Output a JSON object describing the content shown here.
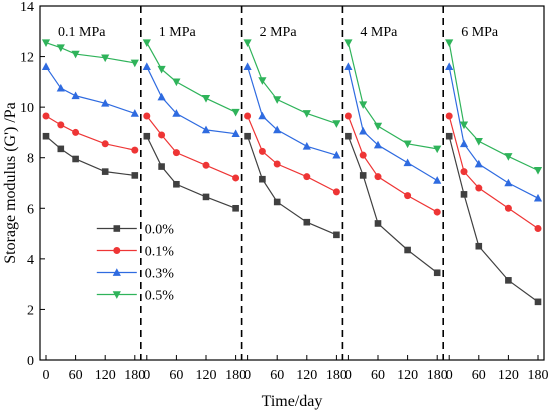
{
  "chart_data": {
    "type": "line",
    "ylabel": "Storage modulus (G') /Pa",
    "xlabel": "Time/day",
    "ylim": [
      0,
      14
    ],
    "yticks": [
      0,
      2,
      4,
      6,
      8,
      10,
      12,
      14
    ],
    "xlim": [
      0,
      180
    ],
    "xticks": [
      0,
      60,
      120,
      180
    ],
    "grid": false,
    "legend_position": "lower-left",
    "legend_panel": 1,
    "legend": [
      {
        "name": "0.0%",
        "color": "#404040",
        "marker": "square"
      },
      {
        "name": "0.1%",
        "color": "#ee3535",
        "marker": "circle"
      },
      {
        "name": "0.3%",
        "color": "#2f6be0",
        "marker": "triangle-up"
      },
      {
        "name": "0.5%",
        "color": "#2fb35a",
        "marker": "triangle-down"
      }
    ],
    "x": [
      0,
      30,
      60,
      120,
      180
    ],
    "panels": [
      {
        "label": "0.1 MPa",
        "series": [
          {
            "name": "0.0%",
            "values": [
              8.85,
              8.35,
              7.95,
              7.45,
              7.3
            ]
          },
          {
            "name": "0.1%",
            "values": [
              9.65,
              9.3,
              9.0,
              8.55,
              8.3
            ]
          },
          {
            "name": "0.3%",
            "values": [
              11.6,
              10.75,
              10.45,
              10.15,
              9.75
            ]
          },
          {
            "name": "0.5%",
            "values": [
              12.55,
              12.35,
              12.1,
              11.95,
              11.75
            ]
          }
        ]
      },
      {
        "label": "1 MPa",
        "series": [
          {
            "name": "0.0%",
            "values": [
              8.85,
              7.65,
              6.95,
              6.45,
              6.0
            ]
          },
          {
            "name": "0.1%",
            "values": [
              9.65,
              8.9,
              8.2,
              7.7,
              7.2
            ]
          },
          {
            "name": "0.3%",
            "values": [
              11.6,
              10.4,
              9.75,
              9.1,
              8.95
            ]
          },
          {
            "name": "0.5%",
            "values": [
              12.55,
              11.5,
              11.0,
              10.35,
              9.8
            ]
          }
        ]
      },
      {
        "label": "2 MPa",
        "series": [
          {
            "name": "0.0%",
            "values": [
              8.85,
              7.15,
              6.25,
              5.45,
              4.95
            ]
          },
          {
            "name": "0.1%",
            "values": [
              9.65,
              8.25,
              7.75,
              7.25,
              6.65
            ]
          },
          {
            "name": "0.3%",
            "values": [
              11.6,
              9.65,
              9.1,
              8.45,
              8.1
            ]
          },
          {
            "name": "0.5%",
            "values": [
              12.55,
              11.05,
              10.3,
              9.75,
              9.35
            ]
          }
        ]
      },
      {
        "label": "4 MPa",
        "series": [
          {
            "name": "0.0%",
            "values": [
              8.85,
              7.3,
              5.4,
              4.35,
              3.45
            ]
          },
          {
            "name": "0.1%",
            "values": [
              9.65,
              8.1,
              7.25,
              6.5,
              5.85
            ]
          },
          {
            "name": "0.3%",
            "values": [
              11.6,
              9.05,
              8.5,
              7.8,
              7.1
            ]
          },
          {
            "name": "0.5%",
            "values": [
              12.55,
              10.1,
              9.25,
              8.55,
              8.35
            ]
          }
        ]
      },
      {
        "label": "6 MPa",
        "series": [
          {
            "name": "0.0%",
            "values": [
              8.85,
              6.55,
              4.5,
              3.15,
              2.3
            ]
          },
          {
            "name": "0.1%",
            "values": [
              9.65,
              7.45,
              6.8,
              6.0,
              5.2
            ]
          },
          {
            "name": "0.3%",
            "values": [
              11.6,
              8.55,
              7.75,
              7.0,
              6.4
            ]
          },
          {
            "name": "0.5%",
            "values": [
              12.55,
              9.3,
              8.65,
              8.05,
              7.5
            ]
          }
        ]
      }
    ]
  }
}
